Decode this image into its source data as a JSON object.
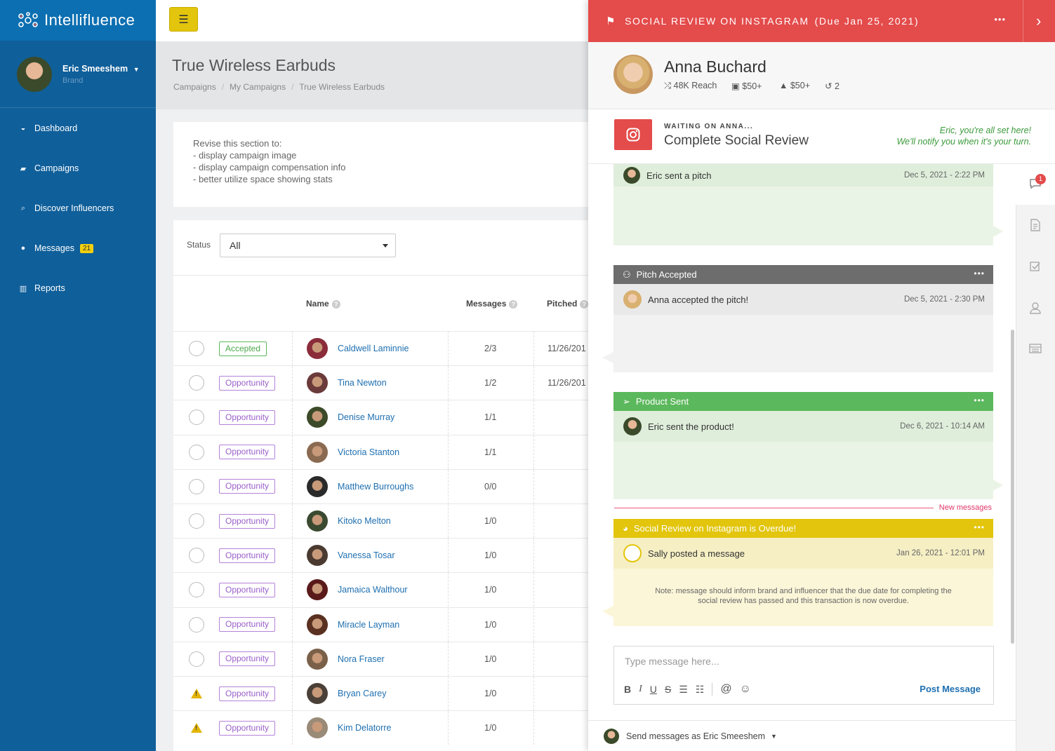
{
  "app": {
    "name": "Intellifluence"
  },
  "user": {
    "name": "Eric Smeeshem",
    "role": "Brand"
  },
  "nav": [
    {
      "label": "Dashboard",
      "icon": "dashboard-icon"
    },
    {
      "label": "Campaigns",
      "icon": "briefcase-icon"
    },
    {
      "label": "Discover Influencers",
      "icon": "search-icon"
    },
    {
      "label": "Messages",
      "icon": "chat-icon",
      "badge": "21"
    },
    {
      "label": "Reports",
      "icon": "bar-chart-icon"
    }
  ],
  "page": {
    "title": "True Wireless Earbuds",
    "breadcrumb": [
      "Campaigns",
      "My Campaigns",
      "True Wireless Earbuds"
    ]
  },
  "notes": {
    "lines": [
      "Revise this section to:",
      "- display campaign image",
      "- display campaign compensation info",
      "- better utilize space showing stats"
    ]
  },
  "filter": {
    "label": "Status",
    "value": "All"
  },
  "table": {
    "headers": {
      "name": "Name",
      "messages": "Messages",
      "pitched": "Pitched"
    },
    "rows": [
      {
        "status": "Accepted",
        "name": "Caldwell Laminnie",
        "messages": "2/3",
        "pitched": "11/26/201",
        "warn": false,
        "color": "#8a2c3a"
      },
      {
        "status": "Opportunity",
        "name": "Tina Newton",
        "messages": "1/2",
        "pitched": "11/26/201",
        "warn": false,
        "color": "#6b3a3a"
      },
      {
        "status": "Opportunity",
        "name": "Denise Murray",
        "messages": "1/1",
        "pitched": "",
        "warn": false,
        "color": "#3d4a2a"
      },
      {
        "status": "Opportunity",
        "name": "Victoria Stanton",
        "messages": "1/1",
        "pitched": "",
        "warn": false,
        "color": "#8a6a50"
      },
      {
        "status": "Opportunity",
        "name": "Matthew Burroughs",
        "messages": "0/0",
        "pitched": "",
        "warn": false,
        "color": "#2a2a2a"
      },
      {
        "status": "Opportunity",
        "name": "Kitoko Melton",
        "messages": "1/0",
        "pitched": "",
        "warn": false,
        "color": "#3a4a30"
      },
      {
        "status": "Opportunity",
        "name": "Vanessa Tosar",
        "messages": "1/0",
        "pitched": "",
        "warn": false,
        "color": "#4a3a30"
      },
      {
        "status": "Opportunity",
        "name": "Jamaica Walthour",
        "messages": "1/0",
        "pitched": "",
        "warn": false,
        "color": "#5a1a1a"
      },
      {
        "status": "Opportunity",
        "name": "Miracle Layman",
        "messages": "1/0",
        "pitched": "",
        "warn": false,
        "color": "#5a3020"
      },
      {
        "status": "Opportunity",
        "name": "Nora Fraser",
        "messages": "1/0",
        "pitched": "",
        "warn": false,
        "color": "#7a6048"
      },
      {
        "status": "Opportunity",
        "name": "Bryan Carey",
        "messages": "1/0",
        "pitched": "",
        "warn": true,
        "color": "#4a4038"
      },
      {
        "status": "Opportunity",
        "name": "Kim Delatorre",
        "messages": "1/0",
        "pitched": "",
        "warn": true,
        "color": "#9a8a78"
      }
    ]
  },
  "panel": {
    "title": "SOCIAL REVIEW ON INSTAGRAM",
    "due": "(Due Jan 25, 2021)",
    "influencer": {
      "name": "Anna Buchard",
      "reach": "48K Reach",
      "comp1": "$50+",
      "comp2": "$50+",
      "count": "2"
    },
    "waiting": {
      "label": "WAITING ON ANNA...",
      "title": "Complete Social Review",
      "note1": "Eric, you're all set here!",
      "note2": "We'll notify you when it's your turn."
    },
    "feed": [
      {
        "sub": "Eric sent a pitch",
        "date": "Dec 5, 2021 - 2:22 PM"
      },
      {
        "head": "Pitch Accepted",
        "sub": "Anna accepted the pitch!",
        "date": "Dec 5, 2021 - 2:30 PM"
      },
      {
        "head": "Product Sent",
        "sub": "Eric sent the product!",
        "date": "Dec 6, 2021 - 10:14 AM"
      },
      {
        "head": "Social Review on Instagram is Overdue!",
        "sub": "Sally posted a message",
        "date": "Jan 26, 2021 - 12:01 PM",
        "note": "Note: message should inform brand and influencer that the due date for completing the social review has passed and this transaction is now overdue."
      }
    ],
    "new_messages": "New messages",
    "notif_count": "1",
    "compose": {
      "placeholder": "Type message here...",
      "post": "Post Message"
    },
    "send_as": "Send messages as Eric Smeeshem"
  },
  "colors": {
    "sidebar": "#0f5f9a",
    "accent_red": "#e44b4b",
    "accent_yellow": "#e2c50c",
    "green": "#5cb85c"
  }
}
